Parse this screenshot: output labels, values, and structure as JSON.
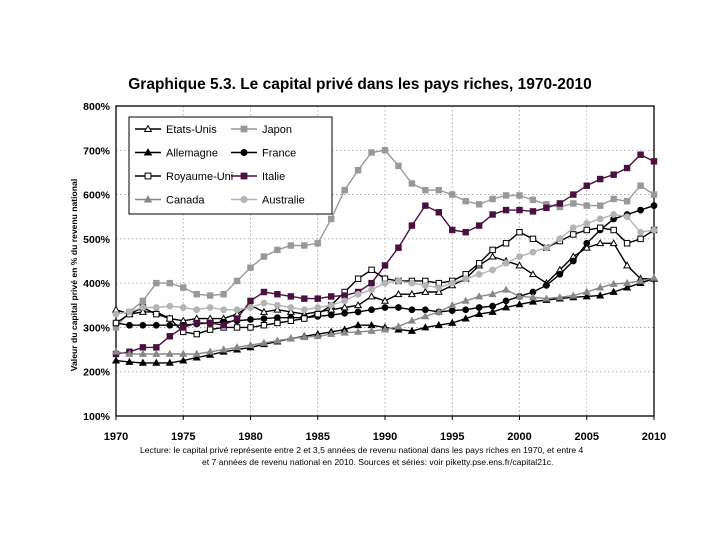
{
  "chart_data": {
    "type": "line",
    "title": "Graphique 5.3. Le capital privé dans les pays riches, 1970-2010",
    "ylabel": "Valeur du capital privé en % du revenu national",
    "xlabel": "",
    "xlim": [
      1970,
      2010
    ],
    "ylim": [
      100,
      800
    ],
    "x_ticks": [
      "1970",
      "1975",
      "1980",
      "1985",
      "1990",
      "1995",
      "2000",
      "2005",
      "2010"
    ],
    "y_ticks": [
      "100%",
      "200%",
      "300%",
      "400%",
      "500%",
      "600%",
      "700%",
      "800%"
    ],
    "legend_position": "top-left",
    "x": [
      1970,
      1971,
      1972,
      1973,
      1974,
      1975,
      1976,
      1977,
      1978,
      1979,
      1980,
      1981,
      1982,
      1983,
      1984,
      1985,
      1986,
      1987,
      1988,
      1989,
      1990,
      1991,
      1992,
      1993,
      1994,
      1995,
      1996,
      1997,
      1998,
      1999,
      2000,
      2001,
      2002,
      2003,
      2004,
      2005,
      2006,
      2007,
      2008,
      2009,
      2010
    ],
    "series": [
      {
        "name": "Etats-Unis",
        "color": "#000000",
        "marker": "triangle-open",
        "values": [
          340,
          330,
          335,
          335,
          320,
          315,
          320,
          320,
          320,
          330,
          350,
          335,
          340,
          335,
          330,
          335,
          340,
          345,
          350,
          370,
          360,
          375,
          375,
          380,
          380,
          395,
          410,
          440,
          460,
          450,
          440,
          420,
          400,
          430,
          460,
          480,
          490,
          490,
          440,
          410,
          410
        ]
      },
      {
        "name": "Japon",
        "color": "#999999",
        "marker": "square",
        "values": [
          300,
          335,
          360,
          400,
          400,
          390,
          375,
          372,
          375,
          405,
          435,
          460,
          475,
          485,
          485,
          490,
          545,
          610,
          655,
          695,
          700,
          665,
          625,
          610,
          610,
          600,
          585,
          578,
          590,
          598,
          598,
          588,
          578,
          572,
          580,
          575,
          575,
          590,
          585,
          620,
          600
        ]
      },
      {
        "name": "Allemagne",
        "color": "#000000",
        "marker": "triangle",
        "values": [
          225,
          222,
          220,
          220,
          220,
          225,
          232,
          238,
          245,
          250,
          255,
          262,
          268,
          275,
          280,
          285,
          290,
          295,
          305,
          305,
          300,
          295,
          292,
          300,
          305,
          310,
          320,
          330,
          335,
          345,
          352,
          358,
          362,
          365,
          368,
          370,
          372,
          380,
          390,
          400,
          410
        ]
      },
      {
        "name": "France",
        "color": "#000000",
        "marker": "circle",
        "values": [
          310,
          305,
          305,
          305,
          305,
          305,
          308,
          310,
          312,
          315,
          318,
          320,
          322,
          322,
          322,
          325,
          328,
          332,
          335,
          340,
          345,
          345,
          340,
          340,
          335,
          338,
          340,
          345,
          348,
          360,
          370,
          380,
          395,
          420,
          450,
          490,
          520,
          545,
          555,
          565,
          575
        ]
      },
      {
        "name": "Royaume-Uni",
        "color": "#000000",
        "marker": "square-open",
        "values": [
          310,
          330,
          345,
          330,
          320,
          290,
          285,
          295,
          300,
          300,
          300,
          305,
          310,
          315,
          320,
          330,
          350,
          380,
          410,
          430,
          410,
          405,
          405,
          405,
          400,
          405,
          420,
          445,
          475,
          490,
          515,
          500,
          480,
          495,
          510,
          520,
          525,
          520,
          490,
          500,
          520
        ]
      },
      {
        "name": "Italie",
        "color": "#4b1040",
        "marker": "square",
        "values": [
          240,
          245,
          255,
          255,
          280,
          300,
          310,
          310,
          305,
          320,
          360,
          380,
          375,
          370,
          365,
          365,
          370,
          372,
          380,
          400,
          440,
          480,
          530,
          575,
          560,
          520,
          515,
          530,
          555,
          565,
          565,
          562,
          570,
          580,
          600,
          620,
          635,
          645,
          660,
          690,
          675
        ]
      },
      {
        "name": "Canada",
        "color": "#888888",
        "marker": "triangle",
        "values": [
          245,
          240,
          240,
          240,
          240,
          240,
          240,
          245,
          250,
          255,
          260,
          265,
          270,
          275,
          278,
          280,
          285,
          288,
          290,
          292,
          295,
          302,
          315,
          325,
          335,
          350,
          360,
          370,
          375,
          385,
          370,
          368,
          365,
          368,
          372,
          380,
          390,
          398,
          400,
          405,
          412
        ]
      },
      {
        "name": "Australie",
        "color": "#b4b4b4",
        "marker": "circle",
        "values": [
          330,
          335,
          345,
          345,
          348,
          345,
          340,
          345,
          340,
          340,
          345,
          355,
          350,
          345,
          340,
          345,
          350,
          360,
          375,
          385,
          400,
          405,
          400,
          395,
          390,
          400,
          410,
          420,
          430,
          445,
          460,
          470,
          480,
          500,
          525,
          535,
          545,
          555,
          550,
          515,
          520
        ]
      }
    ]
  },
  "caption": {
    "line1": "Lecture: le capital privé représente entre 2 et 3,5 années de revenu national dans les pays riches en 1970, et entre 4",
    "line2": "et 7 années de revenu national en 2010. Sources et séries: voir piketty.pse.ens.fr/capital21c."
  }
}
